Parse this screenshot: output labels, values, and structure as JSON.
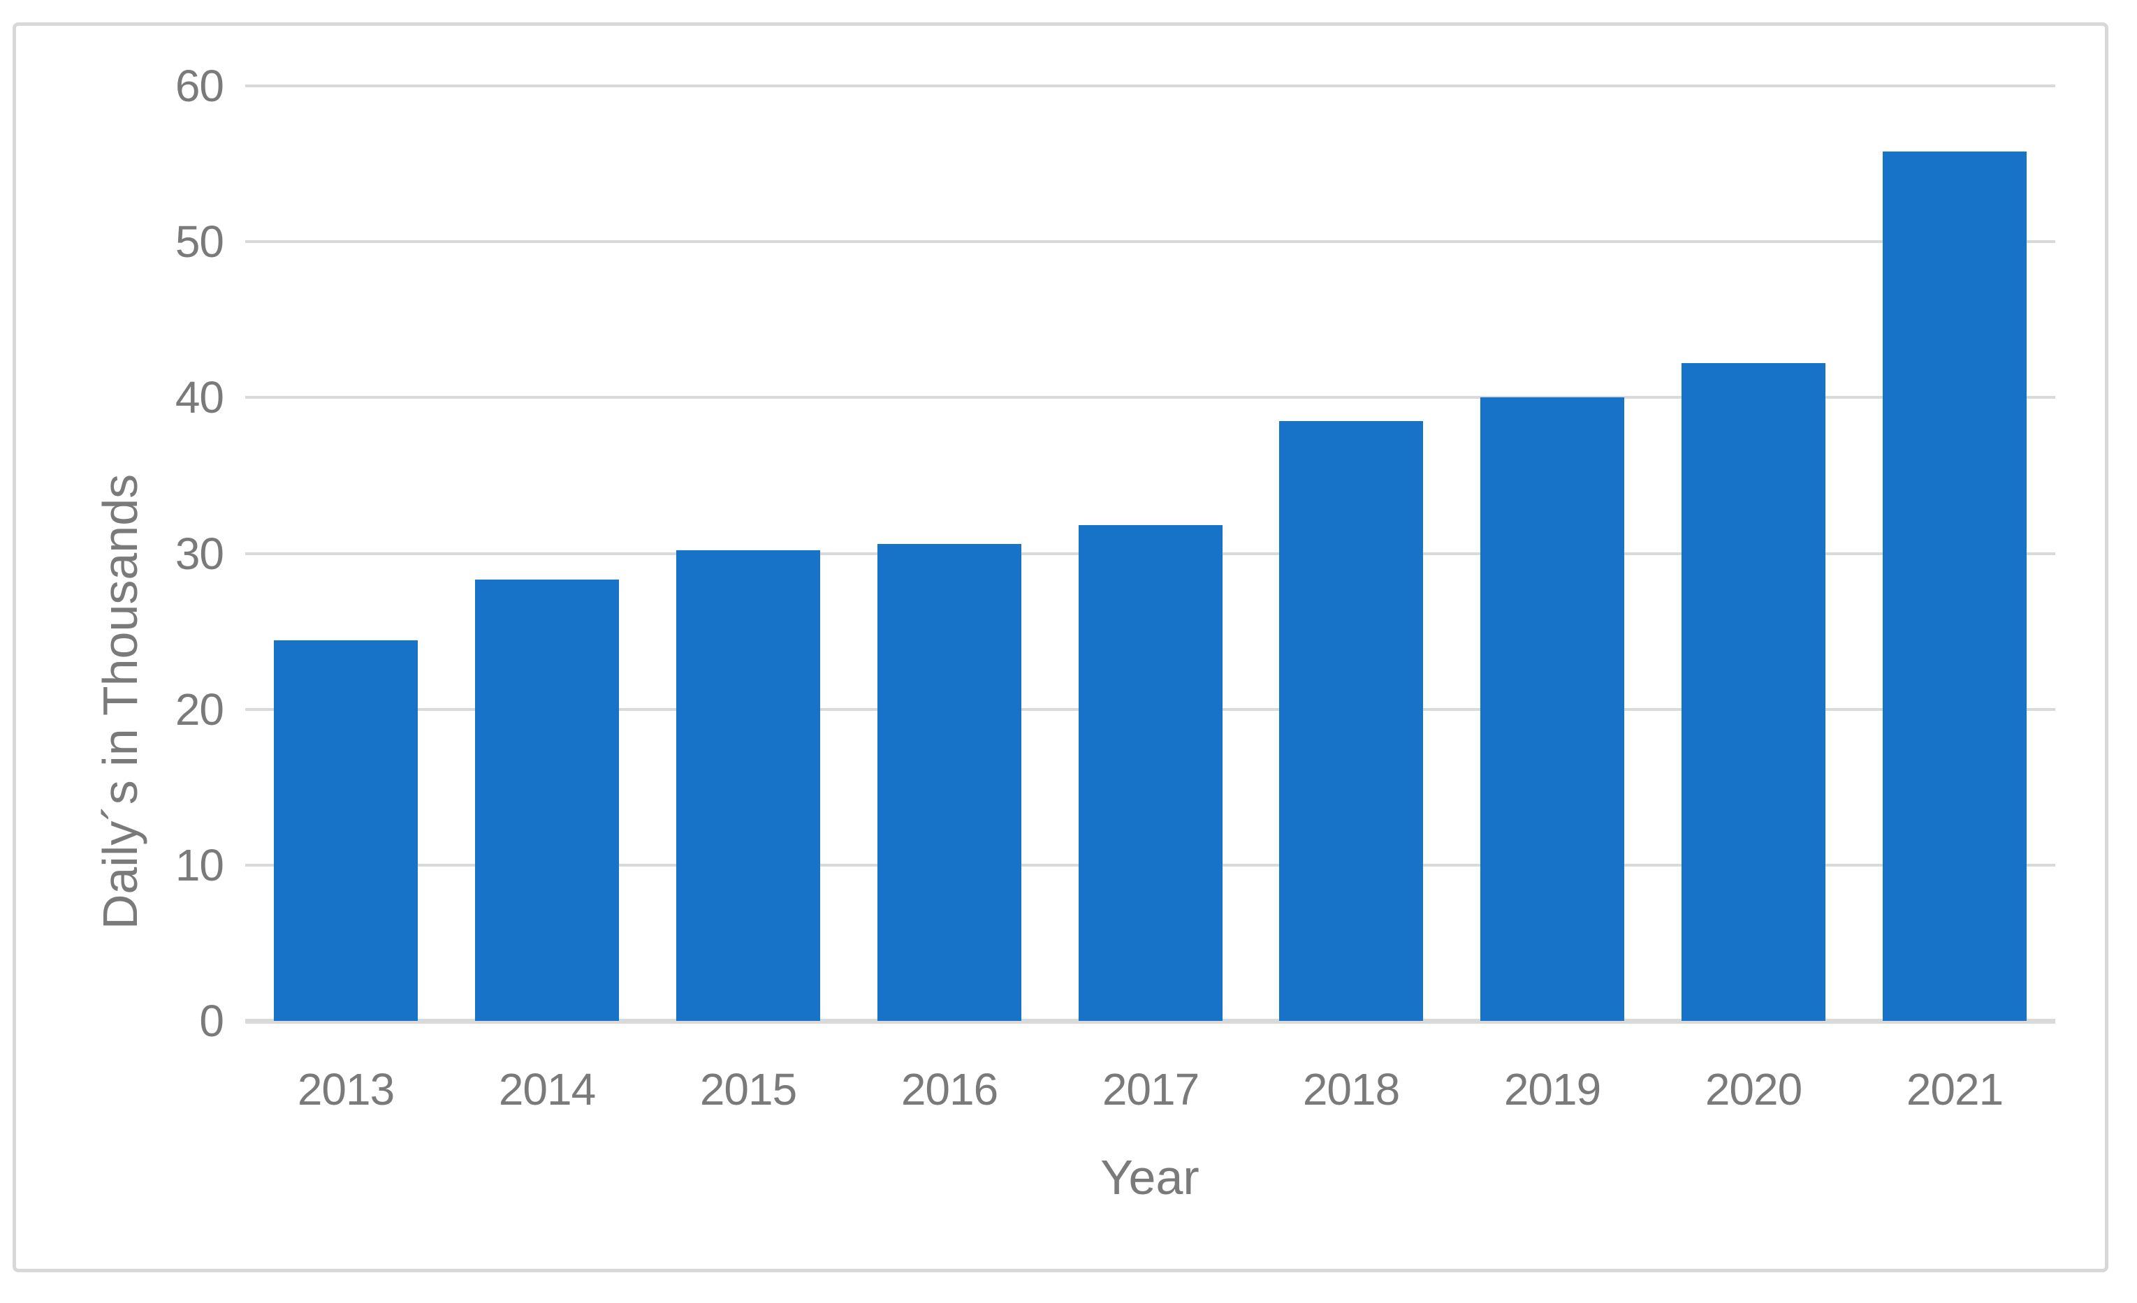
{
  "figure": {
    "background": "#ffffff",
    "border_color": "#d8d8d8"
  },
  "chart_data": {
    "type": "bar",
    "title": "",
    "xlabel": "Year",
    "ylabel": "Daily´s in Thousands",
    "categories": [
      "2013",
      "2014",
      "2015",
      "2016",
      "2017",
      "2018",
      "2019",
      "2020",
      "2021"
    ],
    "values": [
      24.4,
      28.3,
      30.2,
      30.6,
      31.8,
      38.5,
      40.0,
      42.2,
      55.8
    ],
    "series_name": "Daily´s in Thousands",
    "ylim": [
      0,
      60
    ],
    "yticks": [
      0,
      10,
      20,
      30,
      40,
      50,
      60
    ],
    "grid": "horizontal-only",
    "legend_position": "none",
    "bar_color": "#1773c8",
    "gridline_color": "#d9d9d9",
    "axis_line_color": "#d9d9d9",
    "label_color": "#7a7a7a"
  }
}
